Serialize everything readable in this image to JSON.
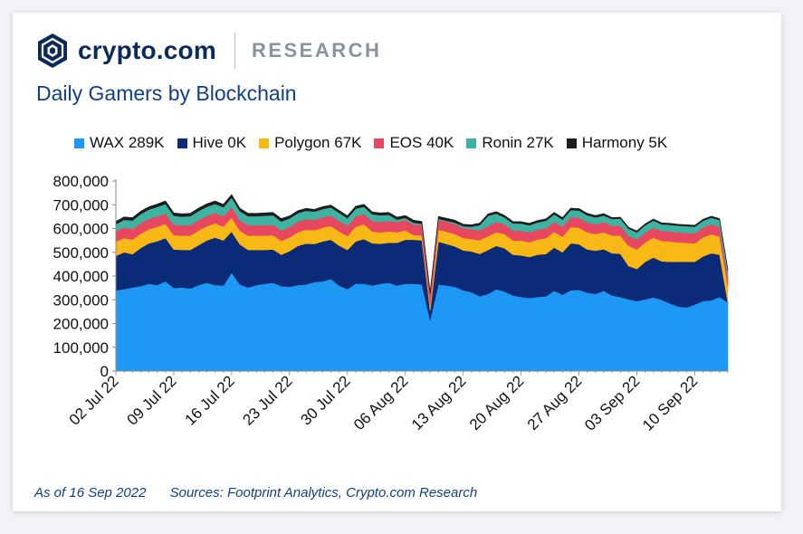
{
  "brand": {
    "name": "crypto.com",
    "section": "RESEARCH"
  },
  "title": "Daily Gamers by Blockchain",
  "footer": {
    "as_of": "As of 16 Sep 2022",
    "sources": "Sources: Footprint Analytics, Crypto.com Research"
  },
  "colors": {
    "WAX": "#1e98f5",
    "Hive": "#0b2a78",
    "Polygon": "#f8b815",
    "EOS": "#e8485f",
    "Ronin": "#3db3a2",
    "Harmony": "#1d1d1d",
    "brand_navy": "#0b2a5b",
    "title_blue": "#103f8a"
  },
  "chart_data": {
    "type": "area",
    "stacked": true,
    "title": "Daily Gamers by Blockchain",
    "legend_position": "top",
    "grid": false,
    "ylim": [
      0,
      800000
    ],
    "yticks": [
      "0",
      "100,000",
      "200,000",
      "300,000",
      "400,000",
      "500,000",
      "600,000",
      "700,000",
      "800,000"
    ],
    "xlim": [
      "02 Jul 22",
      "16 Sep 22"
    ],
    "xticks": [
      "02 Jul 22",
      "09 Jul 22",
      "16 Jul 22",
      "23 Jul 22",
      "30 Jul 22",
      "06 Aug 22",
      "13 Aug 22",
      "20 Aug 22",
      "27 Aug 22",
      "03 Sep 22",
      "10 Sep 22"
    ],
    "x_start": "2022-07-02",
    "series": [
      {
        "name": "WAX",
        "legend_label": "WAX 289K",
        "values": [
          340000,
          345000,
          352000,
          358000,
          368000,
          362000,
          378000,
          350000,
          352000,
          348000,
          362000,
          372000,
          362000,
          360000,
          415000,
          365000,
          352000,
          362000,
          368000,
          372000,
          358000,
          355000,
          362000,
          365000,
          375000,
          378000,
          388000,
          360000,
          345000,
          368000,
          368000,
          360000,
          368000,
          372000,
          360000,
          368000,
          368000,
          365000,
          215000,
          365000,
          360000,
          355000,
          340000,
          332000,
          315000,
          325000,
          345000,
          335000,
          318000,
          312000,
          308000,
          312000,
          315000,
          338000,
          322000,
          340000,
          342000,
          330000,
          325000,
          338000,
          318000,
          312000,
          302000,
          295000,
          302000,
          310000,
          300000,
          285000,
          272000,
          268000,
          280000,
          295000,
          298000,
          312000,
          289000
        ]
      },
      {
        "name": "Hive",
        "legend_label": "Hive 0K",
        "values": [
          145000,
          155000,
          140000,
          160000,
          170000,
          185000,
          182000,
          162000,
          158000,
          162000,
          168000,
          178000,
          200000,
          190000,
          172000,
          168000,
          158000,
          148000,
          142000,
          140000,
          132000,
          150000,
          165000,
          172000,
          160000,
          168000,
          165000,
          168000,
          165000,
          178000,
          188000,
          178000,
          168000,
          168000,
          180000,
          185000,
          185000,
          185000,
          40000,
          180000,
          175000,
          170000,
          168000,
          172000,
          178000,
          185000,
          182000,
          182000,
          172000,
          175000,
          172000,
          178000,
          178000,
          182000,
          178000,
          198000,
          192000,
          182000,
          182000,
          175000,
          178000,
          182000,
          140000,
          135000,
          158000,
          168000,
          162000,
          175000,
          188000,
          192000,
          180000,
          188000,
          198000,
          178000,
          0
        ]
      },
      {
        "name": "Polygon",
        "legend_label": "Polygon 67K",
        "values": [
          60000,
          60000,
          62000,
          60000,
          60000,
          60000,
          60000,
          60000,
          60000,
          60000,
          62000,
          60000,
          60000,
          58000,
          60000,
          58000,
          60000,
          60000,
          60000,
          60000,
          58000,
          58000,
          58000,
          58000,
          58000,
          58000,
          58000,
          60000,
          58000,
          62000,
          62000,
          50000,
          48000,
          48000,
          44000,
          40000,
          20000,
          20000,
          20000,
          50000,
          52000,
          52000,
          52000,
          52000,
          58000,
          58000,
          58000,
          60000,
          60000,
          62000,
          62000,
          64000,
          66000,
          66000,
          66000,
          68000,
          70000,
          72000,
          70000,
          72000,
          74000,
          76000,
          85000,
          82000,
          82000,
          84000,
          86000,
          86000,
          82000,
          80000,
          78000,
          80000,
          80000,
          76000,
          67000
        ]
      },
      {
        "name": "EOS",
        "legend_label": "EOS 40K",
        "values": [
          45000,
          45000,
          45000,
          45000,
          44000,
          44000,
          44000,
          44000,
          44000,
          44000,
          44000,
          44000,
          44000,
          44000,
          44000,
          44000,
          44000,
          44000,
          44000,
          44000,
          44000,
          44000,
          44000,
          44000,
          44000,
          44000,
          44000,
          44000,
          44000,
          44000,
          44000,
          44000,
          44000,
          44000,
          44000,
          44000,
          44000,
          44000,
          44000,
          42000,
          42000,
          42000,
          42000,
          42000,
          42000,
          42000,
          42000,
          42000,
          42000,
          42000,
          42000,
          42000,
          42000,
          42000,
          42000,
          42000,
          42000,
          42000,
          42000,
          42000,
          42000,
          42000,
          42000,
          42000,
          42000,
          42000,
          42000,
          42000,
          42000,
          42000,
          42000,
          42000,
          42000,
          42000,
          40000
        ]
      },
      {
        "name": "Ronin",
        "legend_label": "Ronin 27K",
        "values": [
          28000,
          32000,
          35000,
          38000,
          38000,
          40000,
          40000,
          38000,
          36000,
          38000,
          38000,
          38000,
          38000,
          38000,
          40000,
          38000,
          38000,
          38000,
          40000,
          40000,
          38000,
          36000,
          36000,
          36000,
          34000,
          34000,
          34000,
          34000,
          32000,
          32000,
          30000,
          28000,
          28000,
          26000,
          10000,
          8000,
          8000,
          6000,
          6000,
          4000,
          4000,
          6000,
          8000,
          10000,
          22000,
          44000,
          36000,
          28000,
          30000,
          30000,
          30000,
          30000,
          32000,
          32000,
          30000,
          30000,
          30000,
          30000,
          28000,
          28000,
          28000,
          30000,
          30000,
          30000,
          30000,
          30000,
          28000,
          28000,
          28000,
          28000,
          28000,
          28000,
          28000,
          28000,
          27000
        ]
      },
      {
        "name": "Harmony",
        "legend_label": "Harmony 5K",
        "values": [
          12000,
          12000,
          12000,
          12000,
          12000,
          12000,
          12000,
          12000,
          12000,
          12000,
          12000,
          12000,
          12000,
          12000,
          12000,
          12000,
          12000,
          12000,
          12000,
          12000,
          12000,
          10000,
          10000,
          10000,
          10000,
          10000,
          10000,
          10000,
          10000,
          10000,
          10000,
          10000,
          10000,
          10000,
          10000,
          10000,
          10000,
          10000,
          10000,
          10000,
          10000,
          10000,
          8000,
          8000,
          8000,
          8000,
          8000,
          8000,
          8000,
          8000,
          8000,
          8000,
          8000,
          8000,
          8000,
          8000,
          8000,
          8000,
          8000,
          8000,
          6000,
          6000,
          6000,
          6000,
          6000,
          6000,
          6000,
          6000,
          6000,
          6000,
          6000,
          6000,
          6000,
          6000,
          5000
        ]
      }
    ]
  }
}
